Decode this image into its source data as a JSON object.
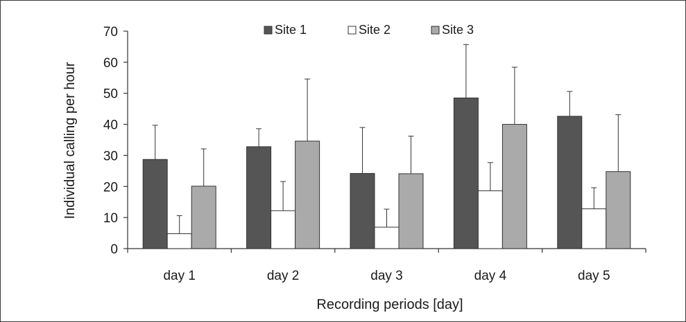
{
  "chart_data": {
    "type": "bar",
    "categories": [
      "day 1",
      "day 2",
      "day 3",
      "day 4",
      "day 5"
    ],
    "series": [
      {
        "name": "Site 1",
        "color": "#555555",
        "values": [
          28.7,
          32.8,
          24.2,
          48.5,
          42.6
        ],
        "error": [
          11.0,
          5.8,
          14.8,
          17.2,
          8.0
        ]
      },
      {
        "name": "Site 2",
        "color": "#ffffff",
        "values": [
          4.8,
          12.2,
          6.9,
          18.6,
          12.8
        ],
        "error": [
          5.8,
          9.4,
          5.8,
          9.1,
          6.8
        ]
      },
      {
        "name": "Site 3",
        "color": "#aaaaaa",
        "values": [
          20.1,
          34.6,
          24.1,
          40.0,
          24.8
        ],
        "error": [
          12.0,
          20.0,
          12.1,
          18.4,
          18.3
        ]
      }
    ],
    "title": "",
    "xlabel": "Recording periods [day]",
    "ylabel": "Individual calling per hour",
    "ylim": [
      0,
      70
    ],
    "yticks": [
      0,
      10,
      20,
      30,
      40,
      50,
      60,
      70
    ],
    "legend_position": "top-center",
    "grid": false
  }
}
